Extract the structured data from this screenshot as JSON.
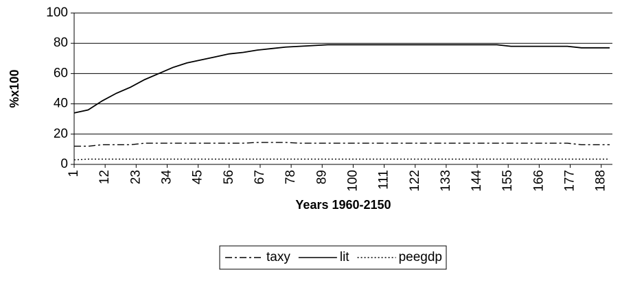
{
  "chart_data": {
    "type": "line",
    "x_label": "Years 1960-2150",
    "y_label": "%x100",
    "x": [
      1,
      6,
      11,
      16,
      21,
      26,
      31,
      36,
      41,
      46,
      51,
      56,
      61,
      66,
      71,
      76,
      81,
      86,
      91,
      96,
      101,
      106,
      111,
      116,
      121,
      126,
      131,
      136,
      141,
      146,
      151,
      156,
      161,
      166,
      171,
      176,
      181,
      186,
      191
    ],
    "xlim": [
      1,
      191
    ],
    "xticks": [
      1,
      12,
      23,
      34,
      45,
      56,
      67,
      78,
      89,
      100,
      111,
      122,
      133,
      144,
      155,
      166,
      177,
      188
    ],
    "ylim": [
      0,
      100
    ],
    "yticks": [
      0,
      20,
      40,
      60,
      80,
      100
    ],
    "grid": true,
    "series": [
      {
        "name": "taxy",
        "color": "#000000",
        "dash": "dashdot",
        "values": [
          12,
          12,
          13,
          13,
          13,
          14,
          14,
          14,
          14,
          14,
          14,
          14,
          14,
          14.5,
          14.5,
          14.5,
          14,
          14,
          14,
          14,
          14,
          14,
          14,
          14,
          14,
          14,
          14,
          14,
          14,
          14,
          14,
          14,
          14,
          14,
          14,
          14,
          13,
          13,
          13
        ]
      },
      {
        "name": "lit",
        "color": "#000000",
        "dash": "solid",
        "values": [
          34,
          36,
          42,
          47,
          51,
          56,
          60,
          64,
          67,
          69,
          71,
          73,
          74,
          75.5,
          76.5,
          77.5,
          78,
          78.5,
          79,
          79,
          79,
          79,
          79,
          79,
          79,
          79,
          79,
          79,
          79,
          79,
          79,
          78,
          78,
          78,
          78,
          78,
          77,
          77,
          77
        ]
      },
      {
        "name": "peegdp",
        "color": "#000000",
        "dash": "dot",
        "values": [
          3,
          3.5,
          3.5,
          3.5,
          3.5,
          3.5,
          3.5,
          3.5,
          3.5,
          3.5,
          3.5,
          3.5,
          3.5,
          3.5,
          3.5,
          3.5,
          3.5,
          3.5,
          3.5,
          3.5,
          3.5,
          3.5,
          3.5,
          3.5,
          3.5,
          3.5,
          3.5,
          3.5,
          3.5,
          3.5,
          3.5,
          3.5,
          3.5,
          3.5,
          3.5,
          3.5,
          3.5,
          3.5,
          3.5
        ]
      }
    ],
    "legend": "bottom"
  }
}
